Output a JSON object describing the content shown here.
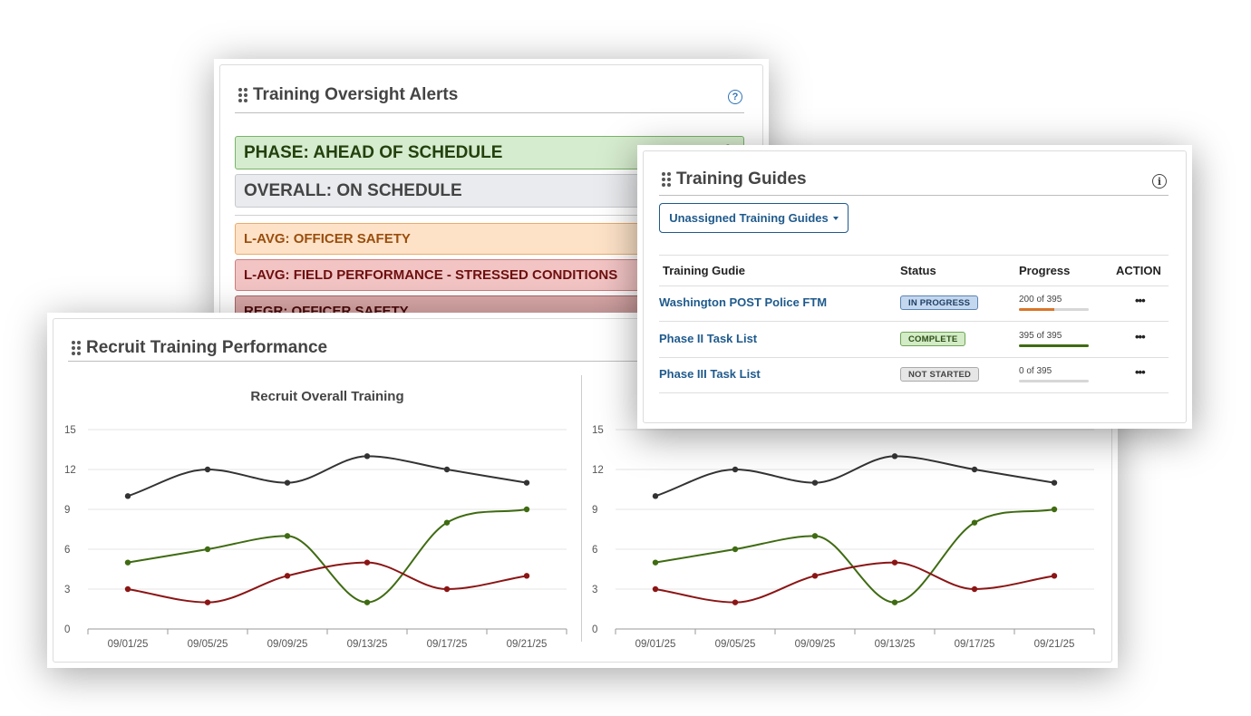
{
  "colors": {
    "accent_blue": "#1f5a8c",
    "line_black": "#333333",
    "line_green": "#3f6b12",
    "line_red": "#8b1515"
  },
  "alerts_panel": {
    "title": "Training Oversight Alerts",
    "help_icon": "?",
    "items": [
      {
        "label": "PHASE: AHEAD OF SCHEDULE",
        "bg": "#d6ecce",
        "border": "#79b46a",
        "text": "#23410d",
        "icon": "gear-icon"
      },
      {
        "label": "OVERALL: ON SCHEDULE",
        "bg": "#e9ebee",
        "border": "#c7cacd",
        "text": "#444444"
      },
      {
        "label": "L-AVG: OFFICER SAFETY",
        "bg": "#fde2c7",
        "border": "#eaab6b",
        "text": "#9a4e0e"
      },
      {
        "label": "L-AVG: FIELD PERFORMANCE - STRESSED CONDITIONS",
        "bg": "#f2c4c4",
        "border": "#cf7c7c",
        "text": "#6e0f0f"
      },
      {
        "label": "REGR: OFFICER SAFETY",
        "bg": "#d9a7a7",
        "border": "#a86868",
        "text": "#4a0909"
      }
    ]
  },
  "performance_panel": {
    "title": "Recruit Training Performance",
    "chart_data": [
      {
        "type": "line",
        "title": "Recruit Overall Training",
        "categories": [
          "09/01/25",
          "09/05/25",
          "09/09/25",
          "09/13/25",
          "09/17/25",
          "09/21/25"
        ],
        "ylim": [
          0,
          15
        ],
        "yticks": [
          0,
          3,
          6,
          9,
          12,
          15
        ],
        "series": [
          {
            "name": "black",
            "color": "#333333",
            "values": [
              10,
              12,
              11,
              13,
              12,
              11
            ]
          },
          {
            "name": "green",
            "color": "#3f6b12",
            "values": [
              5,
              6,
              7,
              2,
              8,
              9
            ]
          },
          {
            "name": "red",
            "color": "#8b1515",
            "values": [
              3,
              2,
              4,
              5,
              3,
              4
            ]
          }
        ]
      },
      {
        "type": "line",
        "title": "",
        "categories": [
          "09/01/25",
          "09/05/25",
          "09/09/25",
          "09/13/25",
          "09/17/25",
          "09/21/25"
        ],
        "ylim": [
          0,
          15
        ],
        "yticks": [
          0,
          3,
          6,
          9,
          12,
          15
        ],
        "series": [
          {
            "name": "black",
            "color": "#333333",
            "values": [
              10,
              12,
              11,
              13,
              12,
              11
            ]
          },
          {
            "name": "green",
            "color": "#3f6b12",
            "values": [
              5,
              6,
              7,
              2,
              8,
              9
            ]
          },
          {
            "name": "red",
            "color": "#8b1515",
            "values": [
              3,
              2,
              4,
              5,
              3,
              4
            ]
          }
        ]
      }
    ]
  },
  "guides_panel": {
    "title": "Training Guides",
    "info_icon": "i",
    "dropdown_label": "Unassigned Training Guides",
    "columns": [
      "Training Gudie",
      "Status",
      "Progress",
      "ACTION"
    ],
    "rows": [
      {
        "name": "Washington POST Police FTM",
        "status": "IN PROGRESS",
        "status_bg": "#c3d7ee",
        "status_border": "#5c84b3",
        "status_text": "#1f3f66",
        "progress": "200 of 395",
        "done": 200,
        "total": 395,
        "bar_color": "#d9762a",
        "action": "•••"
      },
      {
        "name": "Phase II Task List",
        "status": "COMPLETE",
        "status_bg": "#d3ebc6",
        "status_border": "#6ea455",
        "status_text": "#2b4e14",
        "progress": "395 of 395",
        "done": 395,
        "total": 395,
        "bar_color": "#3f6b12",
        "action": "•••"
      },
      {
        "name": "Phase III Task List",
        "status": "NOT STARTED",
        "status_bg": "#e6e6e6",
        "status_border": "#aaaaaa",
        "status_text": "#444444",
        "progress": "0 of 395",
        "done": 0,
        "total": 395,
        "bar_color": "#888888",
        "action": "•••"
      }
    ]
  }
}
